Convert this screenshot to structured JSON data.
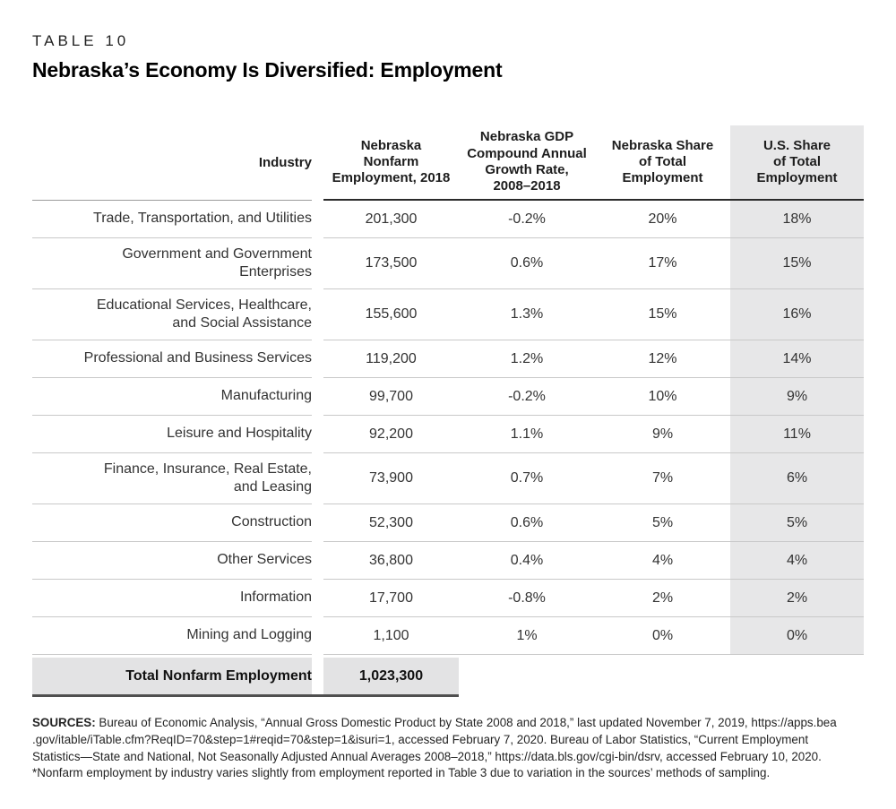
{
  "header": {
    "kicker": "TABLE 10",
    "title": "Nebraska’s Economy Is Diversified: Employment"
  },
  "table": {
    "columns": [
      "Industry",
      "Nebraska\nNonfarm\nEmployment, 2018",
      "Nebraska GDP\nCompound Annual\nGrowth Rate,\n2008–2018",
      "Nebraska Share\nof Total\nEmployment",
      "U.S. Share\nof Total\nEmployment"
    ],
    "rows": [
      {
        "industry": "Trade, Transportation, and Utilities",
        "employment": "201,300",
        "growth": "-0.2%",
        "ne_share": "20%",
        "us_share": "18%",
        "tall": false
      },
      {
        "industry": "Government and Government\nEnterprises",
        "employment": "173,500",
        "growth": "0.6%",
        "ne_share": "17%",
        "us_share": "15%",
        "tall": true
      },
      {
        "industry": "Educational Services, Healthcare,\nand Social Assistance",
        "employment": "155,600",
        "growth": "1.3%",
        "ne_share": "15%",
        "us_share": "16%",
        "tall": true
      },
      {
        "industry": "Professional and Business Services",
        "employment": "119,200",
        "growth": "1.2%",
        "ne_share": "12%",
        "us_share": "14%",
        "tall": false
      },
      {
        "industry": "Manufacturing",
        "employment": "99,700",
        "growth": "-0.2%",
        "ne_share": "10%",
        "us_share": "9%",
        "tall": false
      },
      {
        "industry": "Leisure and Hospitality",
        "employment": "92,200",
        "growth": "1.1%",
        "ne_share": "9%",
        "us_share": "11%",
        "tall": false
      },
      {
        "industry": "Finance, Insurance, Real Estate,\nand Leasing",
        "employment": "73,900",
        "growth": "0.7%",
        "ne_share": "7%",
        "us_share": "6%",
        "tall": true
      },
      {
        "industry": "Construction",
        "employment": "52,300",
        "growth": "0.6%",
        "ne_share": "5%",
        "us_share": "5%",
        "tall": false
      },
      {
        "industry": "Other Services",
        "employment": "36,800",
        "growth": "0.4%",
        "ne_share": "4%",
        "us_share": "4%",
        "tall": false
      },
      {
        "industry": "Information",
        "employment": "17,700",
        "growth": "-0.8%",
        "ne_share": "2%",
        "us_share": "2%",
        "tall": false
      },
      {
        "industry": "Mining and Logging",
        "employment": "1,100",
        "growth": "1%",
        "ne_share": "0%",
        "us_share": "0%",
        "tall": false
      }
    ],
    "total": {
      "label": "Total Nonfarm Employment",
      "value": "1,023,300"
    }
  },
  "footer": {
    "sources_label": "SOURCES:",
    "sources_body": " Bureau of Economic Analysis, “Annual Gross Domestic Product by State 2008 and 2018,” last updated November 7, 2019, https://apps.bea\n.gov/itable/iTable.cfm?ReqID=70&step=1#reqid=70&step=1&isuri=1, accessed February 7, 2020. Bureau of Labor Statistics, “Current Employment\nStatistics—State and National, Not Seasonally Adjusted Annual Averages 2008–2018,” https://data.bls.gov/cgi-bin/dsrv, accessed February 10, 2020.\n*Nonfarm employment by industry varies slightly from employment reported in Table 3 due to variation in the sources’ methods of sampling."
  },
  "colors": {
    "shade": "#e7e7e8",
    "total_shade": "#e3e3e4",
    "row_rule": "#c9c9c9",
    "header_rule": "#2b2b2b",
    "industry_rule": "#9b9b9b",
    "total_rule": "#4f4f4f"
  }
}
